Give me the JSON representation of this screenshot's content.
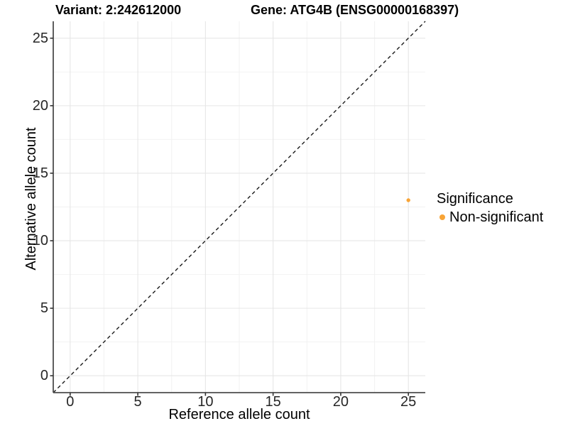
{
  "header": {
    "variant_title": "Variant: 2:242612000",
    "gene_title": "Gene: ATG4B (ENSG00000168397)"
  },
  "axes": {
    "x_label": "Reference allele count",
    "y_label": "Alternative allele count"
  },
  "legend": {
    "title": "Significance",
    "items": [
      {
        "label": "Non-significant",
        "color": "#F8A436"
      }
    ]
  },
  "colors": {
    "background": "#FFFFFF",
    "point_orange": "#F8A436",
    "axis_line": "#4D4D4D",
    "tick_mark": "#333333",
    "tick_label": "#262626",
    "grid_major": "#E6E6E6",
    "grid_minor": "#F2F2F2",
    "reference_line": "#1A1A1A"
  },
  "chart_data": {
    "type": "scatter",
    "title": "Variant: 2:242612000   Gene: ATG4B (ENSG00000168397)",
    "xlabel": "Reference allele count",
    "ylabel": "Alternative allele count",
    "xlim": [
      -1.25,
      26.25
    ],
    "ylim": [
      -1.25,
      26.25
    ],
    "x_ticks": [
      0,
      5,
      10,
      15,
      20,
      25
    ],
    "y_ticks": [
      0,
      5,
      10,
      15,
      20,
      25
    ],
    "x_minor_ticks": [
      2.5,
      7.5,
      12.5,
      17.5,
      22.5
    ],
    "y_minor_ticks": [
      2.5,
      7.5,
      12.5,
      17.5,
      22.5
    ],
    "grid": true,
    "legend_position": "right",
    "legend_title": "Significance",
    "identity_line": {
      "style": "dashed",
      "from": [
        -1.25,
        -1.25
      ],
      "to": [
        26.25,
        26.25
      ]
    },
    "series": [
      {
        "name": "Non-significant",
        "color": "#F8A436",
        "point_radius": 2.7,
        "points": [
          {
            "x": 25,
            "y": 13
          }
        ]
      }
    ]
  }
}
